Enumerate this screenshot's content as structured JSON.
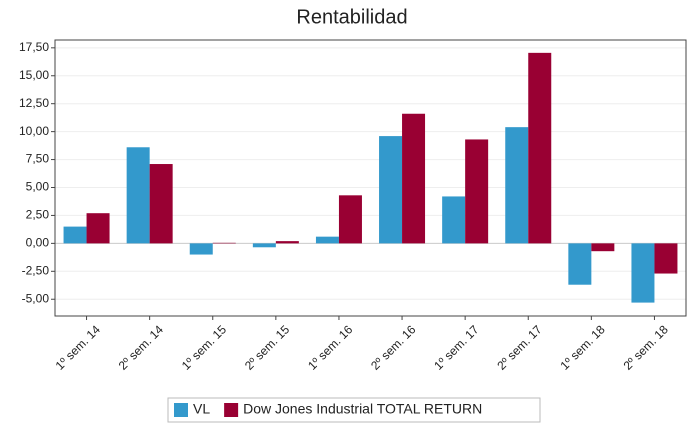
{
  "chart_data": {
    "type": "bar",
    "title": "Rentabilidad",
    "categories": [
      "1º sem. 14",
      "2º sem. 14",
      "1º sem. 15",
      "2º sem. 15",
      "1º sem. 16",
      "2º sem. 16",
      "1º sem. 17",
      "2º sem. 17",
      "1º sem. 18",
      "2º sem. 18"
    ],
    "series": [
      {
        "name": "VL",
        "color": "#3399cc",
        "values": [
          1.5,
          8.6,
          -1.0,
          -0.35,
          0.6,
          9.6,
          4.2,
          10.4,
          -3.7,
          -5.3
        ]
      },
      {
        "name": "Dow Jones Industrial TOTAL RETURN",
        "color": "#990033",
        "values": [
          2.7,
          7.1,
          0.05,
          0.2,
          4.3,
          11.6,
          9.3,
          17.05,
          -0.7,
          -2.7
        ]
      }
    ],
    "ylim": [
      -6.5,
      18.2
    ],
    "yticks": [
      {
        "value": -5,
        "label": "-5,00"
      },
      {
        "value": -2.5,
        "label": "-2,50"
      },
      {
        "value": 0,
        "label": "0,00"
      },
      {
        "value": 2.5,
        "label": "2,50"
      },
      {
        "value": 5,
        "label": "5,00"
      },
      {
        "value": 7.5,
        "label": "7,50"
      },
      {
        "value": 10,
        "label": "10,00"
      },
      {
        "value": 12.5,
        "label": "12,50"
      },
      {
        "value": 15,
        "label": "15,00"
      },
      {
        "value": 17.5,
        "label": "17,50"
      }
    ],
    "grid": true,
    "legend": "bottom"
  }
}
